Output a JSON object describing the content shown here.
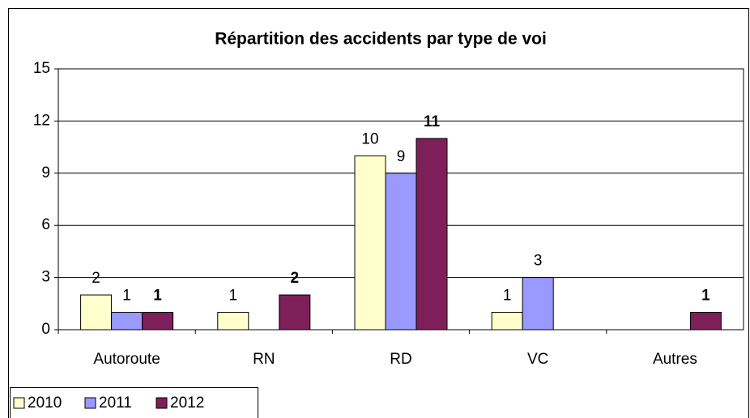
{
  "chart_data": {
    "type": "bar",
    "title": "Répartition des accidents par type de voi",
    "categories": [
      "Autoroute",
      "RN",
      "RD",
      "VC",
      "Autres"
    ],
    "series": [
      {
        "name": "2010",
        "color": "#ffffcc",
        "values": [
          2,
          1,
          10,
          1,
          null
        ]
      },
      {
        "name": "2011",
        "color": "#9999ff",
        "values": [
          1,
          null,
          9,
          3,
          null
        ]
      },
      {
        "name": "2012",
        "color": "#7f1f5a",
        "values": [
          1,
          2,
          11,
          null,
          1
        ]
      }
    ],
    "ylim": [
      0,
      15
    ],
    "yticks": [
      0,
      3,
      6,
      9,
      12,
      15
    ],
    "grid": true,
    "legend": "bottom-left"
  }
}
